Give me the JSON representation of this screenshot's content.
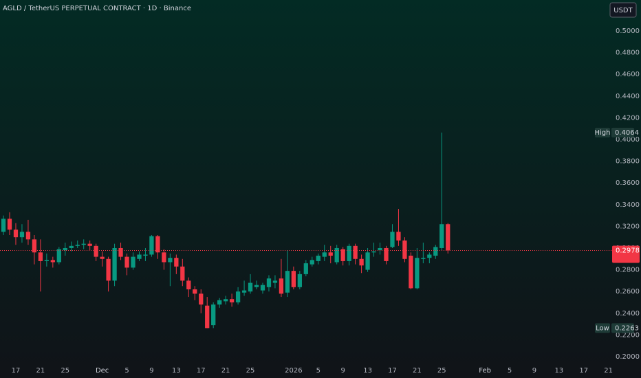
{
  "chart_data": {
    "type": "candlestick",
    "title": "AGLD / TetherUS PERPETUAL CONTRACT · 1D · Binance",
    "currency": "USDT",
    "up_color": "#089981",
    "down_color": "#f23645",
    "open": [
      0.315,
      0.327,
      0.317,
      0.31,
      0.315,
      0.308,
      0.296,
      0.288,
      0.289,
      0.287,
      0.298,
      0.3,
      0.302,
      0.303,
      0.304,
      0.302,
      0.292,
      0.29,
      0.27,
      0.3,
      0.292,
      0.282,
      0.29,
      0.293,
      0.294,
      0.311,
      0.296,
      0.287,
      0.291,
      0.283,
      0.27,
      0.262,
      0.258,
      0.247,
      0.229,
      0.248,
      0.251,
      0.253,
      0.25,
      0.259,
      0.26,
      0.264,
      0.261,
      0.264,
      0.268,
      0.272,
      0.259,
      0.279,
      0.264,
      0.276,
      0.285,
      0.288,
      0.292,
      0.296,
      0.287,
      0.299,
      0.288,
      0.302,
      0.29,
      0.28,
      0.296,
      0.298,
      0.3,
      0.301,
      0.315,
      0.307,
      0.293,
      0.263,
      0.29,
      0.291,
      0.293,
      0.3,
      0.322
    ],
    "high": [
      0.33,
      0.333,
      0.323,
      0.322,
      0.326,
      0.312,
      0.308,
      0.295,
      0.292,
      0.301,
      0.305,
      0.306,
      0.307,
      0.308,
      0.307,
      0.304,
      0.297,
      0.292,
      0.304,
      0.305,
      0.295,
      0.296,
      0.297,
      0.3,
      0.312,
      0.312,
      0.299,
      0.295,
      0.294,
      0.29,
      0.273,
      0.265,
      0.262,
      0.255,
      0.25,
      0.254,
      0.256,
      0.258,
      0.264,
      0.27,
      0.276,
      0.27,
      0.268,
      0.275,
      0.275,
      0.29,
      0.298,
      0.283,
      0.279,
      0.289,
      0.292,
      0.295,
      0.303,
      0.302,
      0.303,
      0.301,
      0.304,
      0.304,
      0.294,
      0.3,
      0.305,
      0.305,
      0.302,
      0.322,
      0.336,
      0.31,
      0.296,
      0.3,
      0.305,
      0.296,
      0.303,
      0.4064,
      0.323
    ],
    "low": [
      0.312,
      0.312,
      0.303,
      0.305,
      0.303,
      0.285,
      0.26,
      0.283,
      0.282,
      0.285,
      0.293,
      0.297,
      0.3,
      0.299,
      0.298,
      0.288,
      0.283,
      0.26,
      0.265,
      0.289,
      0.275,
      0.28,
      0.288,
      0.288,
      0.292,
      0.29,
      0.28,
      0.265,
      0.276,
      0.265,
      0.255,
      0.252,
      0.24,
      0.2263,
      0.2263,
      0.245,
      0.248,
      0.246,
      0.248,
      0.256,
      0.258,
      0.262,
      0.258,
      0.26,
      0.263,
      0.255,
      0.255,
      0.262,
      0.262,
      0.274,
      0.283,
      0.285,
      0.288,
      0.286,
      0.285,
      0.284,
      0.284,
      0.285,
      0.277,
      0.278,
      0.292,
      0.294,
      0.285,
      0.3,
      0.302,
      0.287,
      0.262,
      0.262,
      0.286,
      0.286,
      0.29,
      0.298,
      0.295
    ],
    "close": [
      0.327,
      0.317,
      0.31,
      0.315,
      0.308,
      0.296,
      0.288,
      0.289,
      0.287,
      0.299,
      0.3,
      0.302,
      0.303,
      0.304,
      0.302,
      0.292,
      0.29,
      0.27,
      0.3,
      0.292,
      0.282,
      0.292,
      0.294,
      0.294,
      0.311,
      0.296,
      0.287,
      0.291,
      0.283,
      0.27,
      0.262,
      0.258,
      0.248,
      0.2263,
      0.248,
      0.252,
      0.253,
      0.25,
      0.26,
      0.261,
      0.268,
      0.266,
      0.266,
      0.272,
      0.27,
      0.258,
      0.279,
      0.264,
      0.276,
      0.286,
      0.289,
      0.293,
      0.296,
      0.293,
      0.3,
      0.288,
      0.302,
      0.29,
      0.284,
      0.296,
      0.297,
      0.3,
      0.288,
      0.315,
      0.307,
      0.29,
      0.263,
      0.291,
      0.291,
      0.294,
      0.301,
      0.322,
      0.2978
    ],
    "xlim": [
      -0.56,
      98.6
    ],
    "xticks": [
      {
        "value": 2,
        "label": "17"
      },
      {
        "value": 6,
        "label": "21"
      },
      {
        "value": 10,
        "label": "25"
      },
      {
        "value": 16,
        "label": "Dec"
      },
      {
        "value": 20,
        "label": "5"
      },
      {
        "value": 24,
        "label": "9"
      },
      {
        "value": 28,
        "label": "13"
      },
      {
        "value": 32,
        "label": "17"
      },
      {
        "value": 36,
        "label": "21"
      },
      {
        "value": 40,
        "label": "25"
      },
      {
        "value": 47,
        "label": "2026"
      },
      {
        "value": 51,
        "label": "5"
      },
      {
        "value": 55,
        "label": "9"
      },
      {
        "value": 59,
        "label": "13"
      },
      {
        "value": 63,
        "label": "17"
      },
      {
        "value": 67,
        "label": "21"
      },
      {
        "value": 71,
        "label": "25"
      },
      {
        "value": 78,
        "label": "Feb"
      },
      {
        "value": 82,
        "label": "5"
      },
      {
        "value": 86,
        "label": "9"
      },
      {
        "value": 90,
        "label": "13"
      },
      {
        "value": 94,
        "label": "17"
      },
      {
        "value": 98,
        "label": "21"
      }
    ],
    "ylim": [
      0.193,
      0.5285
    ],
    "yticks": [
      {
        "value": 0.2,
        "label": "0.2000"
      },
      {
        "value": 0.22,
        "label": "0.2200"
      },
      {
        "value": 0.24,
        "label": "0.2400"
      },
      {
        "value": 0.26,
        "label": "0.2600"
      },
      {
        "value": 0.28,
        "label": "0.2800"
      },
      {
        "value": 0.3,
        "label": "0.3000"
      },
      {
        "value": 0.32,
        "label": "0.3200"
      },
      {
        "value": 0.34,
        "label": "0.3400"
      },
      {
        "value": 0.36,
        "label": "0.3600"
      },
      {
        "value": 0.38,
        "label": "0.3800"
      },
      {
        "value": 0.4,
        "label": "0.4000"
      },
      {
        "value": 0.42,
        "label": "0.4200"
      },
      {
        "value": 0.44,
        "label": "0.4400"
      },
      {
        "value": 0.46,
        "label": "0.4600"
      },
      {
        "value": 0.48,
        "label": "0.4800"
      },
      {
        "value": 0.5,
        "label": "0.5000"
      }
    ],
    "high_marker": {
      "label": "High",
      "value": 0.4064
    },
    "low_marker": {
      "label": "Low",
      "value": 0.2263
    },
    "last_price": 0.2978
  }
}
